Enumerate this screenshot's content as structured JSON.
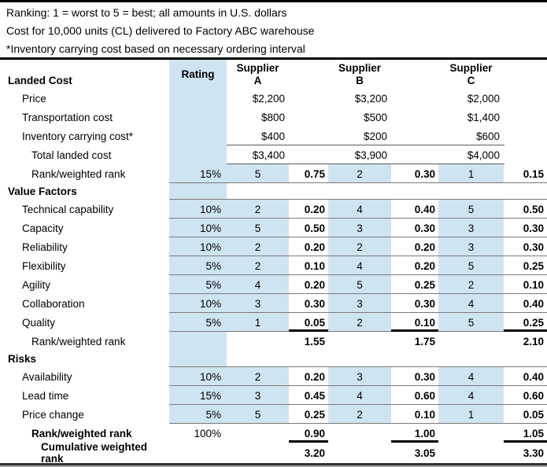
{
  "notes": [
    "Ranking: 1 = worst to 5 = best; all amounts in U.S. dollars",
    "Cost for 10,000 units (CL) delivered to Factory ABC warehouse",
    "*Inventory carrying cost based on necessary ordering interval"
  ],
  "colors": {
    "highlight": "#cfe4f1",
    "row_line": "#7a7a7a",
    "strong_line": "#000000"
  },
  "header": {
    "section_label": "Landed Cost",
    "rating_label": "Rating",
    "suppliers": [
      {
        "word": "Supplier",
        "letter": "A"
      },
      {
        "word": "Supplier",
        "letter": "B"
      },
      {
        "word": "Supplier",
        "letter": "C"
      }
    ]
  },
  "table": {
    "rows": [
      {
        "label": "Price",
        "indent": 1,
        "blueRating": true,
        "money": [
          "$2,200",
          "$3,200",
          "$2,000"
        ]
      },
      {
        "label": "Transportation cost",
        "indent": 1,
        "blueRating": true,
        "money": [
          "$800",
          "$500",
          "$1,400"
        ]
      },
      {
        "label": "Inventory carrying cost*",
        "indent": 1,
        "blueRating": true,
        "line": "money",
        "money": [
          "$400",
          "$200",
          "$600"
        ]
      },
      {
        "label": "Total landed cost",
        "indent": 2,
        "blueRating": true,
        "line": "money",
        "money": [
          "$3,400",
          "$3,900",
          "$4,000"
        ]
      },
      {
        "label": "Rank/weighted rank",
        "indent": 2,
        "rating": "15%",
        "blueRating": true,
        "blueRanks": true,
        "line": "full",
        "ranks": [
          "5",
          "2",
          "1"
        ],
        "wts": [
          "0.75",
          "0.30",
          "0.15"
        ]
      },
      {
        "label": "Value Factors",
        "section": true,
        "bold": true,
        "blueRating": true,
        "line": "full"
      },
      {
        "label": "Technical capability",
        "indent": 1,
        "rating": "10%",
        "blueRating": true,
        "blueRanks": true,
        "line": "full",
        "ranks": [
          "2",
          "4",
          "5"
        ],
        "wts": [
          "0.20",
          "0.40",
          "0.50"
        ]
      },
      {
        "label": "Capacity",
        "indent": 1,
        "rating": "10%",
        "blueRating": true,
        "blueRanks": true,
        "line": "full",
        "ranks": [
          "5",
          "3",
          "3"
        ],
        "wts": [
          "0.50",
          "0.30",
          "0.30"
        ]
      },
      {
        "label": "Reliability",
        "indent": 1,
        "rating": "10%",
        "blueRating": true,
        "blueRanks": true,
        "line": "full",
        "ranks": [
          "2",
          "2",
          "3"
        ],
        "wts": [
          "0.20",
          "0.20",
          "0.30"
        ]
      },
      {
        "label": "Flexibility",
        "indent": 1,
        "rating": "5%",
        "blueRating": true,
        "blueRanks": true,
        "line": "full",
        "ranks": [
          "2",
          "4",
          "5"
        ],
        "wts": [
          "0.10",
          "0.20",
          "0.25"
        ]
      },
      {
        "label": "Agility",
        "indent": 1,
        "rating": "5%",
        "blueRating": true,
        "blueRanks": true,
        "line": "full",
        "ranks": [
          "4",
          "5",
          "2"
        ],
        "wts": [
          "0.20",
          "0.25",
          "0.10"
        ]
      },
      {
        "label": "Collaboration",
        "indent": 1,
        "rating": "10%",
        "blueRating": true,
        "blueRanks": true,
        "line": "full",
        "ranks": [
          "3",
          "3",
          "4"
        ],
        "wts": [
          "0.30",
          "0.30",
          "0.40"
        ]
      },
      {
        "label": "Quality",
        "indent": 1,
        "rating": "5%",
        "blueRating": true,
        "blueRanks": true,
        "line": "full",
        "thickWt": true,
        "ranks": [
          "1",
          "2",
          "5"
        ],
        "wts": [
          "0.05",
          "0.10",
          "0.25"
        ]
      },
      {
        "label": "Rank/weighted rank",
        "indent": 2,
        "blueRating": true,
        "wts": [
          "1.55",
          "1.75",
          "2.10"
        ]
      },
      {
        "label": "Risks",
        "section": true,
        "bold": true,
        "blueRating": true,
        "line": "full"
      },
      {
        "label": "Availability",
        "indent": 1,
        "rating": "10%",
        "blueRating": true,
        "blueRanks": true,
        "line": "full",
        "ranks": [
          "2",
          "3",
          "4"
        ],
        "wts": [
          "0.20",
          "0.30",
          "0.40"
        ]
      },
      {
        "label": "Lead time",
        "indent": 1,
        "rating": "15%",
        "blueRating": true,
        "blueRanks": true,
        "line": "full",
        "ranks": [
          "3",
          "4",
          "4"
        ],
        "wts": [
          "0.45",
          "0.60",
          "0.60"
        ]
      },
      {
        "label": "Price change",
        "indent": 1,
        "rating": "5%",
        "blueRating": true,
        "blueRanks": true,
        "line": "full",
        "ranks": [
          "5",
          "2",
          "1"
        ],
        "wts": [
          "0.25",
          "0.10",
          "0.05"
        ]
      },
      {
        "label": "Rank/weighted rank",
        "indent": 2,
        "bold": true,
        "rating": "100%",
        "thickWt": true,
        "wts": [
          "0.90",
          "1.00",
          "1.05"
        ]
      },
      {
        "label": "Cumulative weighted rank",
        "indent": 3,
        "bold": true,
        "grand": true,
        "wts": [
          "3.20",
          "3.05",
          "3.30"
        ]
      }
    ]
  }
}
